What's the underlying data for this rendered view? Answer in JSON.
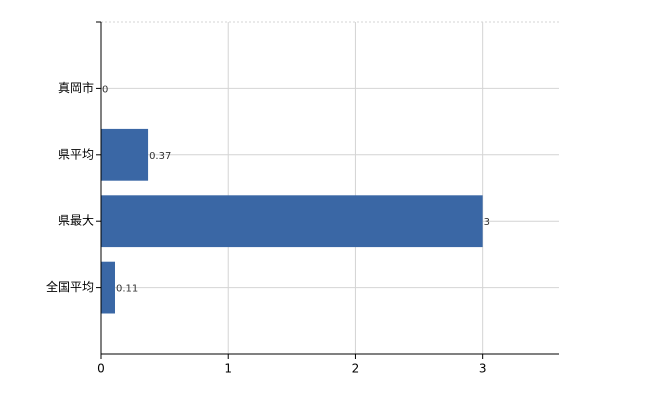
{
  "chart_data": {
    "type": "bar",
    "orientation": "horizontal",
    "categories": [
      "真岡市",
      "県平均",
      "県最大",
      "全国平均"
    ],
    "values": [
      0,
      0.37,
      3,
      0.11
    ],
    "color": "#3a67a5",
    "xlim": [
      0,
      3.6
    ],
    "xticks": [
      0,
      1,
      2,
      3
    ],
    "grid": true
  }
}
